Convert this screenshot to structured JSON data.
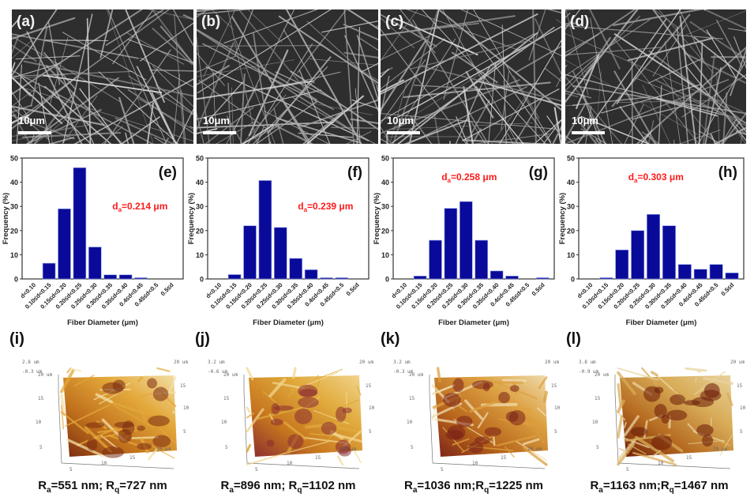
{
  "figure": {
    "sem_panels": [
      {
        "label": "(a)",
        "scale_bar": "10μm"
      },
      {
        "label": "(b)",
        "scale_bar": "10μm"
      },
      {
        "label": "(c)",
        "scale_bar": "10μm"
      },
      {
        "label": "(d)",
        "scale_bar": "10μm"
      }
    ],
    "afm_panels": [
      {
        "label": "(i)",
        "z_max": "2.8 um",
        "z_min": "-0.3 um",
        "Ra": "551 nm",
        "Rq": "727 nm",
        "sep": "; ",
        "colors": [
          "#7a2a10",
          "#c0701c",
          "#e3a83a",
          "#f3e0a8"
        ]
      },
      {
        "label": "(j)",
        "z_max": "3.2 um",
        "z_min": "-0.6 um",
        "Ra": "896 nm",
        "Rq": "1102 nm",
        "sep": "; ",
        "colors": [
          "#8a2b30",
          "#c7771e",
          "#e0aa3c",
          "#f2d58e"
        ]
      },
      {
        "label": "(k)",
        "z_max": "3.2 um",
        "z_min": "-0.3 um",
        "Ra": "1036 nm",
        "Rq": "1225 nm",
        "sep": ";",
        "colors": [
          "#7a2018",
          "#b8661c",
          "#dca040",
          "#efdcae"
        ]
      },
      {
        "label": "(l)",
        "z_max": "3.8 um",
        "z_min": "-0.9 um",
        "Ra": "1163 nm",
        "Rq": "1467 nm",
        "sep": ";",
        "colors": [
          "#6a1a08",
          "#b56a20",
          "#d8ac58",
          "#e8d29c"
        ]
      }
    ],
    "afm_axis_ticks": [
      "5",
      "10",
      "15",
      "20 um"
    ],
    "afm_side_ticks": [
      "5",
      "10",
      "15",
      "20 um"
    ],
    "bar_color": "#0a0a9a",
    "annotation_color": "#ff1a1a"
  },
  "chart_data": [
    {
      "type": "bar",
      "panel": "(e)",
      "annotation": {
        "prefix": "d",
        "sub": "a",
        "value": "=0.214 μm",
        "placement": "center-right"
      },
      "xlabel": "Fiber Diameter (μm)",
      "ylabel": "Frequency (%)",
      "ylim": [
        0,
        50
      ],
      "yticks": [
        0,
        10,
        20,
        30,
        40,
        50
      ],
      "categories": [
        "d<0.10",
        "0.10≤d<0.15",
        "0.15≤d<0.20",
        "0.20≤d<0.25",
        "0.25≤d<0.30",
        "0.30≤d<0.35",
        "0.35≤d<0.40",
        "0.4≤d<0.45",
        "0.45≤d<0.5",
        "0.5≤d"
      ],
      "values": [
        0,
        6.5,
        29,
        46,
        13.2,
        1.7,
        1.7,
        0.5,
        0,
        0
      ]
    },
    {
      "type": "bar",
      "panel": "(f)",
      "annotation": {
        "prefix": "d",
        "sub": "a",
        "value": "=0.239 μm",
        "placement": "center-right"
      },
      "xlabel": "Fiber Diameter (μm)",
      "ylabel": "Frequency (%)",
      "ylim": [
        0,
        50
      ],
      "yticks": [
        0,
        10,
        20,
        30,
        40,
        50
      ],
      "categories": [
        "d<0.10",
        "0.10≤d<0.15",
        "0.15≤d<0.20",
        "0.20≤d<0.25",
        "0.25≤d<0.30",
        "0.30≤d<0.35",
        "0.35≤d<0.40",
        "0.4≤d<0.45",
        "0.45≤d<0.5",
        "0.5≤d"
      ],
      "values": [
        0,
        1.8,
        22,
        40.7,
        21.3,
        8.5,
        3.8,
        0.5,
        0.5,
        0
      ]
    },
    {
      "type": "bar",
      "panel": "(g)",
      "annotation": {
        "prefix": "d",
        "sub": "a",
        "value": "=0.258 μm",
        "placement": "top-center"
      },
      "xlabel": "Fiber Diameter (μm)",
      "ylabel": "Frequency (%)",
      "ylim": [
        0,
        50
      ],
      "yticks": [
        0,
        10,
        20,
        30,
        40,
        50
      ],
      "categories": [
        "d<0.10",
        "0.10≤d<0.15",
        "0.15≤d<0.20",
        "0.20≤d<0.25",
        "0.25≤d<0.30",
        "0.30≤d<0.35",
        "0.35≤d<0.40",
        "0.4≤d<0.45",
        "0.45≤d<0.5",
        "0.5≤d"
      ],
      "values": [
        0,
        1.2,
        16,
        29.2,
        32,
        16,
        3.3,
        1.2,
        0,
        0.5
      ]
    },
    {
      "type": "bar",
      "panel": "(h)",
      "annotation": {
        "prefix": "d",
        "sub": "a",
        "value": "=0.303 μm",
        "placement": "top-center"
      },
      "xlabel": "Fiber Diameter (μm)",
      "ylabel": "Frequency (%)",
      "ylim": [
        0,
        50
      ],
      "yticks": [
        0,
        10,
        20,
        30,
        40,
        50
      ],
      "categories": [
        "d<0.10",
        "0.10≤d<0.15",
        "0.15≤d<0.20",
        "0.20≤d<0.25",
        "0.25≤d<0.30",
        "0.30≤d<0.35",
        "0.35≤d<0.40",
        "0.4≤d<0.45",
        "0.45≤d<0.5",
        "0.5≤d"
      ],
      "values": [
        0,
        0.5,
        12,
        20,
        26.7,
        22,
        6,
        4,
        6,
        2.5
      ]
    }
  ]
}
